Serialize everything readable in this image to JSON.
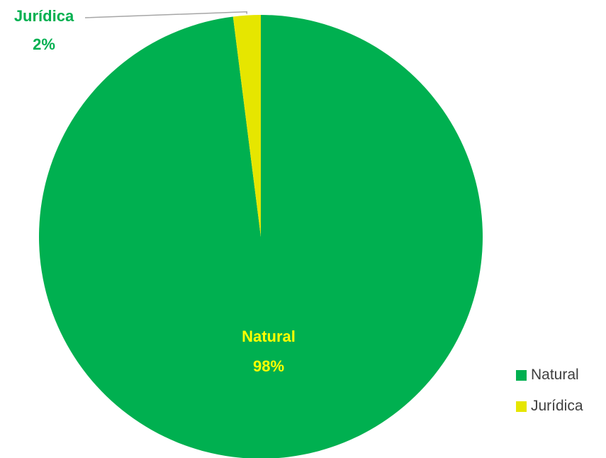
{
  "chart_data": {
    "type": "pie",
    "categories": [
      "Natural",
      "Jurídica"
    ],
    "values": [
      98,
      2
    ],
    "unit": "%",
    "colors": [
      "#00B050",
      "#E6E600"
    ],
    "labels": [
      {
        "name": "Natural",
        "value_text": "98%",
        "color": "#FFFF00"
      },
      {
        "name": "Jurídica",
        "value_text": "2%",
        "color": "#00B050"
      }
    ],
    "legend": {
      "position": "bottom-right",
      "entries": [
        "Natural",
        "Jurídica"
      ]
    }
  }
}
